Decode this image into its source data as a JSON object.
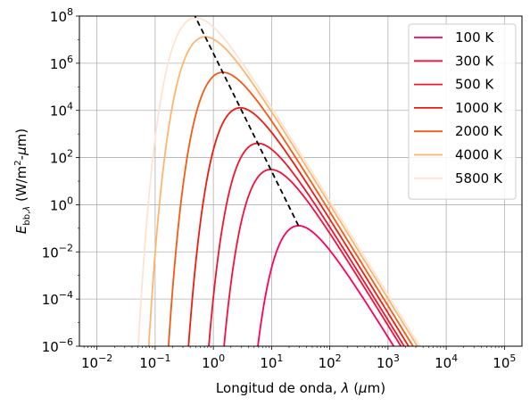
{
  "chart_data": {
    "type": "line",
    "x_scale": "log",
    "y_scale": "log",
    "xlim": [
      0.005,
      200000
    ],
    "ylim": [
      1e-06,
      100000000.0
    ],
    "grid": true,
    "legend_position": "top-right",
    "xlabel": "Longitud de onda, λ (μm)",
    "ylabel": "E_bb,λ (W/m²-μm)",
    "x_ticks": [
      {
        "value": 0.01,
        "base": "10",
        "exp": "−2"
      },
      {
        "value": 0.1,
        "base": "10",
        "exp": "−1"
      },
      {
        "value": 1,
        "base": "10",
        "exp": "0"
      },
      {
        "value": 10,
        "base": "10",
        "exp": "1"
      },
      {
        "value": 100,
        "base": "10",
        "exp": "2"
      },
      {
        "value": 1000,
        "base": "10",
        "exp": "3"
      },
      {
        "value": 10000,
        "base": "10",
        "exp": "4"
      },
      {
        "value": 100000,
        "base": "10",
        "exp": "5"
      }
    ],
    "y_ticks": [
      {
        "value": 1e-06,
        "base": "10",
        "exp": "−6"
      },
      {
        "value": 0.0001,
        "base": "10",
        "exp": "−4"
      },
      {
        "value": 0.01,
        "base": "10",
        "exp": "−2"
      },
      {
        "value": 1,
        "base": "10",
        "exp": "0"
      },
      {
        "value": 100,
        "base": "10",
        "exp": "2"
      },
      {
        "value": 10000,
        "base": "10",
        "exp": "4"
      },
      {
        "value": 1000000,
        "base": "10",
        "exp": "6"
      },
      {
        "value": 100000000,
        "base": "10",
        "exp": "8"
      }
    ],
    "series": [
      {
        "name": "100 K",
        "temperature_K": 100,
        "color": "#ff0055"
      },
      {
        "name": "300 K",
        "temperature_K": 300,
        "color": "#f50f3a"
      },
      {
        "name": "500 K",
        "temperature_K": 500,
        "color": "#f0142d"
      },
      {
        "name": "1000 K",
        "temperature_K": 1000,
        "color": "#ee1c10"
      },
      {
        "name": "2000 K",
        "temperature_K": 2000,
        "color": "#f55a14"
      },
      {
        "name": "4000 K",
        "temperature_K": 4000,
        "color": "#fdb56e"
      },
      {
        "name": "5800 K",
        "temperature_K": 5800,
        "color": "#fde3d2"
      }
    ],
    "peak_locus": {
      "style": "dashed",
      "color": "#000000",
      "from_temperature_K": 100,
      "to_temperature_K": 7000
    }
  }
}
